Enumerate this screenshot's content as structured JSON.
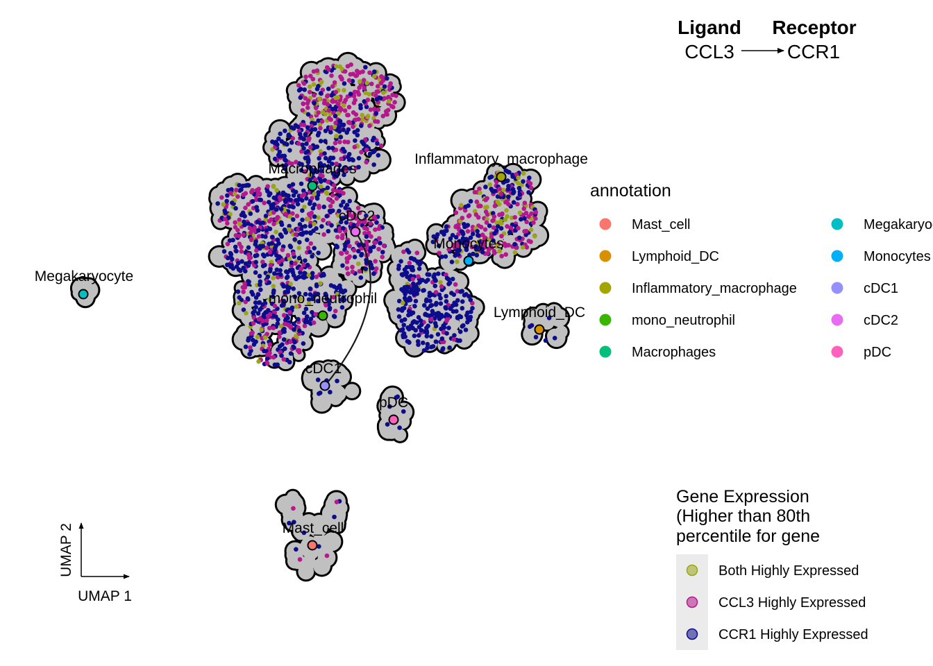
{
  "header": {
    "ligand_title": "Ligand",
    "receptor_title": "Receptor",
    "ligand_gene": "CCL3",
    "receptor_gene": "CCR1"
  },
  "axes": {
    "x_label": "UMAP 1",
    "y_label": "UMAP 2"
  },
  "colors": {
    "background_cell": "#c0c0c0",
    "outline": "#000000",
    "both": "#9aa516",
    "ligand": "#b5178c",
    "receptor": "#0c0c8c",
    "expr_legend_panel": "#ebebeb",
    "arrow": "#1a1a1a"
  },
  "annotation_legend": {
    "title": "annotation",
    "items": [
      {
        "label": "Mast_cell",
        "color": "#F8766D"
      },
      {
        "label": "Lymphoid_DC",
        "color": "#D89000"
      },
      {
        "label": "Inflammatory_macrophage",
        "color": "#A3A500"
      },
      {
        "label": "mono_neutrophil",
        "color": "#39B600"
      },
      {
        "label": "Macrophages",
        "color": "#00BF7D"
      },
      {
        "label": "Megakaryocyte",
        "color": "#00BFC4"
      },
      {
        "label": "Monocytes",
        "color": "#00B0F6"
      },
      {
        "label": "cDC1",
        "color": "#9590FF"
      },
      {
        "label": "cDC2",
        "color": "#E76BF3"
      },
      {
        "label": "pDC",
        "color": "#FF62BC"
      }
    ]
  },
  "expression_legend": {
    "title_lines": [
      "Gene Expression",
      "(Higher than 80th",
      "percentile for gene"
    ],
    "items": [
      {
        "label": "Both Highly Expressed",
        "color": "#9aa516"
      },
      {
        "label": "CCL3 Highly Expressed",
        "color": "#b5178c"
      },
      {
        "label": "CCR1 Highly Expressed",
        "color": "#0c0c8c"
      }
    ]
  },
  "chart_data": {
    "type": "scatter",
    "embedding": "UMAP",
    "xlabel": "UMAP 1",
    "ylabel": "UMAP 2",
    "ligand": "CCL3",
    "receptor": "CCR1",
    "expression_threshold": "Higher than 80th percentile for gene",
    "categories": [
      "Mast_cell",
      "Lymphoid_DC",
      "Inflammatory_macrophage",
      "mono_neutrophil",
      "Macrophages",
      "Megakaryocyte",
      "Monocytes",
      "cDC1",
      "cDC2",
      "pDC"
    ],
    "cluster_labels": [
      "Macrophages",
      "Inflammatory_macrophage",
      "cDC2",
      "Monocytes",
      "Megakaryocyte",
      "mono_neutrophil",
      "Lymphoid_DC",
      "cDC1",
      "pDC",
      "Mast_cell"
    ],
    "interactions": [
      {
        "source": "cDC2",
        "target": "cDC1"
      }
    ],
    "expression_categories": [
      "Both Highly Expressed",
      "CCL3 Highly Expressed",
      "CCR1 Highly Expressed"
    ],
    "grid": false,
    "legend_position": "right"
  }
}
